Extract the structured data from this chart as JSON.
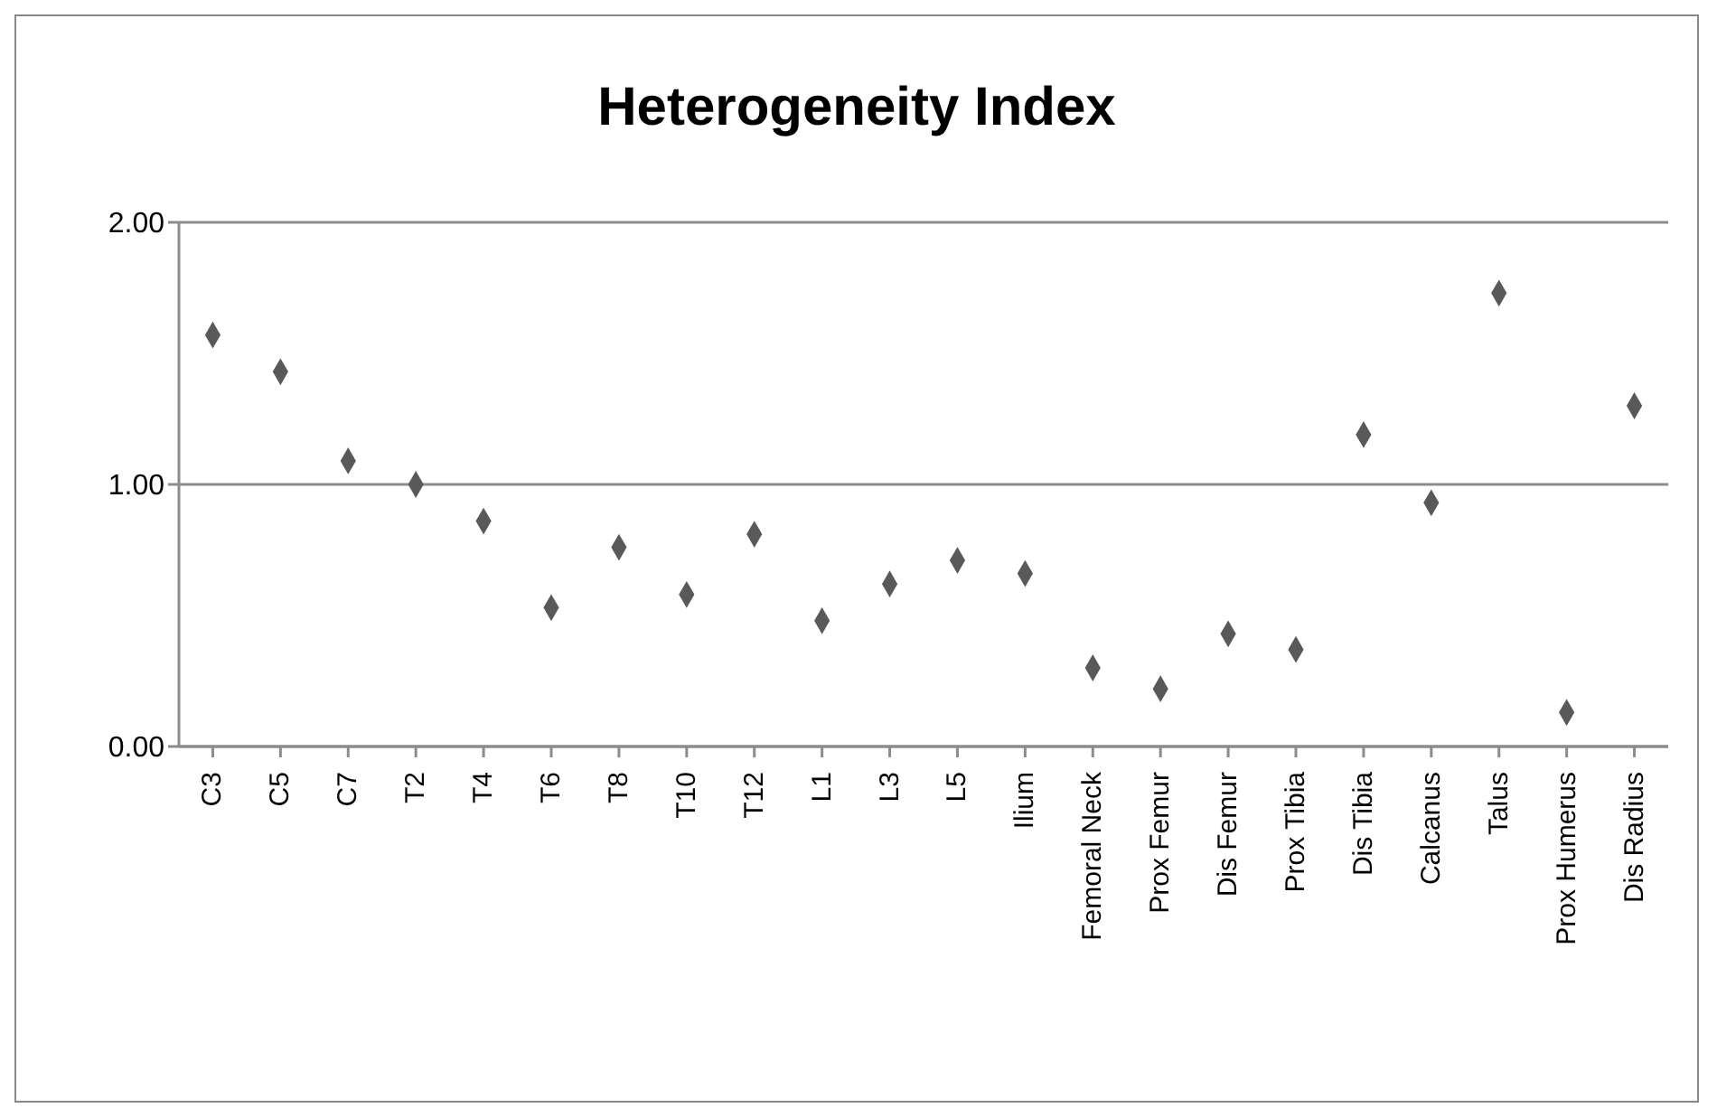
{
  "chart_data": {
    "type": "scatter",
    "title": "Heterogeneity Index",
    "categories": [
      "C3",
      "C5",
      "C7",
      "T2",
      "T4",
      "T6",
      "T8",
      "T10",
      "T12",
      "L1",
      "L3",
      "L5",
      "Ilium",
      "Femoral Neck",
      "Prox Femur",
      "Dis Femur",
      "Prox Tibia",
      "Dis Tibia",
      "Calcanus",
      "Talus",
      "Prox Humerus",
      "Dis Radius"
    ],
    "values": [
      1.57,
      1.43,
      1.09,
      1.0,
      0.86,
      0.53,
      0.76,
      0.58,
      0.81,
      0.48,
      0.62,
      0.71,
      0.66,
      0.3,
      0.22,
      0.43,
      0.37,
      1.19,
      0.93,
      1.73,
      0.13,
      1.3
    ],
    "color": "#595959",
    "marker": "diamond",
    "ylim": [
      0,
      2
    ],
    "yticks": [
      {
        "value": 0,
        "label": "0.00"
      },
      {
        "value": 1,
        "label": "1.00"
      },
      {
        "value": 2,
        "label": "2.00"
      }
    ],
    "grid": "y",
    "legend": false
  }
}
